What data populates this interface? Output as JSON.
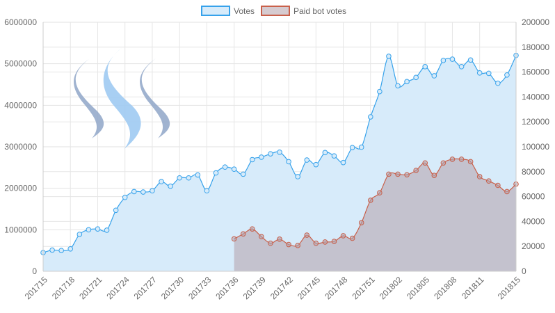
{
  "chart_data": {
    "type": "area",
    "title": "",
    "legend": {
      "position": "top"
    },
    "grid": true,
    "x": [
      "201715",
      "201716",
      "201717",
      "201718",
      "201719",
      "201720",
      "201721",
      "201722",
      "201723",
      "201724",
      "201725",
      "201726",
      "201727",
      "201728",
      "201729",
      "201730",
      "201731",
      "201732",
      "201733",
      "201734",
      "201735",
      "201736",
      "201737",
      "201738",
      "201739",
      "201740",
      "201741",
      "201742",
      "201743",
      "201744",
      "201745",
      "201746",
      "201747",
      "201748",
      "201749",
      "201750",
      "201751",
      "201752",
      "201801",
      "201802",
      "201803",
      "201804",
      "201805",
      "201806",
      "201807",
      "201808",
      "201809",
      "201810",
      "201811",
      "201812",
      "201813",
      "201814",
      "201815"
    ],
    "x_tick_labels": [
      "201715",
      "201718",
      "201721",
      "201724",
      "201727",
      "201730",
      "201733",
      "201736",
      "201739",
      "201742",
      "201745",
      "201748",
      "201751",
      "201802",
      "201805",
      "201808",
      "201811",
      "201815"
    ],
    "y_left": {
      "min": 0,
      "max": 6000000,
      "ticks": [
        "0",
        "1000000",
        "2000000",
        "3000000",
        "4000000",
        "5000000",
        "6000000"
      ]
    },
    "y_right": {
      "min": 0,
      "max": 200000,
      "ticks": [
        "0",
        "20000",
        "40000",
        "60000",
        "80000",
        "100000",
        "120000",
        "140000",
        "160000",
        "180000",
        "200000"
      ]
    },
    "series": [
      {
        "name": "Votes",
        "axis": "left",
        "color": "#36a2eb",
        "fill": "#d7ebfa",
        "values": [
          450000,
          510000,
          500000,
          540000,
          890000,
          1000000,
          1020000,
          990000,
          1470000,
          1780000,
          1920000,
          1910000,
          1940000,
          2160000,
          2050000,
          2250000,
          2250000,
          2320000,
          1940000,
          2370000,
          2510000,
          2460000,
          2340000,
          2690000,
          2750000,
          2830000,
          2870000,
          2640000,
          2280000,
          2680000,
          2570000,
          2860000,
          2780000,
          2620000,
          2980000,
          2990000,
          3720000,
          4330000,
          5180000,
          4470000,
          4570000,
          4670000,
          4930000,
          4710000,
          5080000,
          5110000,
          4930000,
          5090000,
          4780000,
          4770000,
          4530000,
          4730000,
          5200000
        ]
      },
      {
        "name": "Paid bot votes",
        "axis": "right",
        "color": "#c9604a",
        "fill": "rgba(180,160,170,0.55)",
        "values": [
          null,
          null,
          null,
          null,
          null,
          null,
          null,
          null,
          null,
          null,
          null,
          null,
          null,
          null,
          null,
          null,
          null,
          null,
          null,
          null,
          null,
          26000,
          30000,
          34000,
          27800,
          22500,
          25800,
          21500,
          20700,
          29000,
          22500,
          23500,
          24000,
          28500,
          26500,
          39000,
          57000,
          63000,
          78000,
          78000,
          77500,
          81000,
          87000,
          77000,
          87000,
          90000,
          90000,
          88000,
          76000,
          72500,
          69000,
          64000,
          70000
        ]
      }
    ]
  }
}
